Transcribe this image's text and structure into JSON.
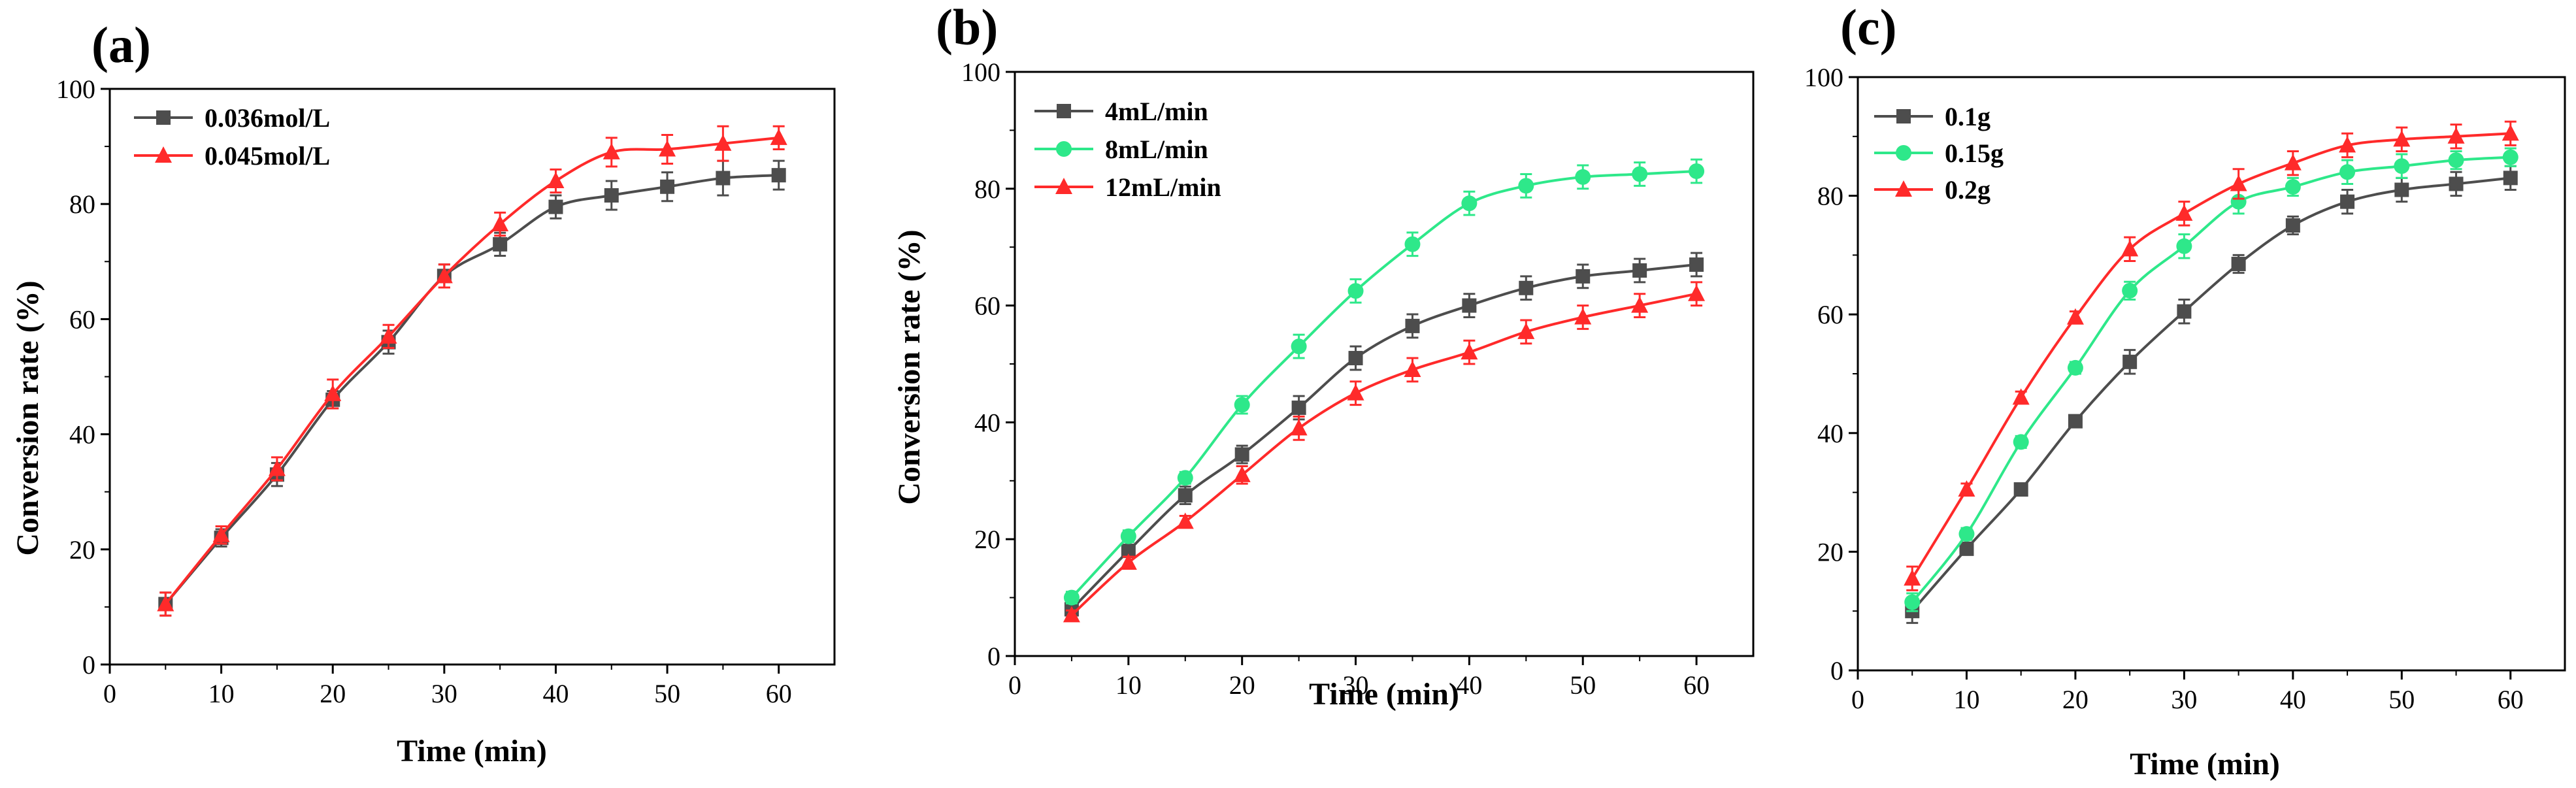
{
  "chart_data": [
    {
      "type": "line",
      "panel_label": "(a)",
      "title": "",
      "xlabel": "Time (min)",
      "ylabel": "Conversion rate (%)",
      "xlim": [
        0,
        65
      ],
      "ylim": [
        0,
        100
      ],
      "xticks": [
        0,
        10,
        20,
        30,
        40,
        50,
        60
      ],
      "yticks": [
        0,
        20,
        40,
        60,
        80,
        100
      ],
      "grid": false,
      "legend_position": "top-left",
      "x": [
        5,
        10,
        15,
        20,
        25,
        30,
        35,
        40,
        45,
        50,
        55,
        60
      ],
      "series": [
        {
          "name": "0.036mol/L",
          "color": "#4d4d4d",
          "marker": "square",
          "values": [
            10.5,
            22.0,
            33.0,
            46.0,
            56.0,
            67.5,
            73.0,
            79.5,
            81.5,
            83.0,
            84.5,
            85.0
          ],
          "errors": [
            2.0,
            1.5,
            2.0,
            1.5,
            2.0,
            2.0,
            2.0,
            2.0,
            2.5,
            2.5,
            3.0,
            2.5
          ]
        },
        {
          "name": "0.045mol/L",
          "color": "#ff2a2a",
          "marker": "triangle",
          "values": [
            10.5,
            22.5,
            34.0,
            47.0,
            57.0,
            67.5,
            76.5,
            84.0,
            89.0,
            89.5,
            90.5,
            91.5
          ],
          "errors": [
            2.0,
            1.5,
            2.0,
            2.5,
            2.0,
            2.0,
            2.0,
            2.0,
            2.5,
            2.5,
            3.0,
            2.0
          ]
        }
      ]
    },
    {
      "type": "line",
      "panel_label": "(b)",
      "title": "",
      "xlabel": "Time (min)",
      "ylabel": "Conversion rate (%)",
      "xlim": [
        0,
        65
      ],
      "ylim": [
        0,
        100
      ],
      "xticks": [
        0,
        10,
        20,
        30,
        40,
        50,
        60
      ],
      "yticks": [
        0,
        20,
        40,
        60,
        80,
        100
      ],
      "grid": false,
      "legend_position": "top-left",
      "x": [
        5,
        10,
        15,
        20,
        25,
        30,
        35,
        40,
        45,
        50,
        55,
        60
      ],
      "series": [
        {
          "name": "4mL/min",
          "color": "#4d4d4d",
          "marker": "square",
          "values": [
            8.0,
            18.0,
            27.5,
            34.5,
            42.5,
            51.0,
            56.5,
            60.0,
            63.0,
            65.0,
            66.0,
            67.0
          ],
          "errors": [
            1.0,
            1.0,
            1.5,
            1.5,
            2.0,
            2.0,
            2.0,
            2.0,
            2.0,
            2.0,
            2.0,
            2.0
          ]
        },
        {
          "name": "8mL/min",
          "color": "#2ee88a",
          "marker": "circle",
          "values": [
            10.0,
            20.5,
            30.5,
            43.0,
            53.0,
            62.5,
            70.5,
            77.5,
            80.5,
            82.0,
            82.5,
            83.0
          ],
          "errors": [
            1.0,
            1.0,
            1.0,
            1.5,
            2.0,
            2.0,
            2.0,
            2.0,
            2.0,
            2.0,
            2.0,
            2.0
          ]
        },
        {
          "name": "12mL/min",
          "color": "#ff2a2a",
          "marker": "triangle",
          "values": [
            7.0,
            16.0,
            23.0,
            31.0,
            39.0,
            45.0,
            49.0,
            52.0,
            55.5,
            58.0,
            60.0,
            62.0
          ],
          "errors": [
            0.8,
            1.0,
            1.0,
            1.5,
            2.0,
            2.0,
            2.0,
            2.0,
            2.0,
            2.0,
            2.0,
            2.0
          ]
        }
      ]
    },
    {
      "type": "line",
      "panel_label": "(c)",
      "title": "",
      "xlabel": "Time (min)",
      "ylabel": "",
      "xlim": [
        0,
        65
      ],
      "ylim": [
        0,
        100
      ],
      "xticks": [
        0,
        10,
        20,
        30,
        40,
        50,
        60
      ],
      "yticks": [
        0,
        20,
        40,
        60,
        80,
        100
      ],
      "grid": false,
      "legend_position": "top-left",
      "x": [
        5,
        10,
        15,
        20,
        25,
        30,
        35,
        40,
        45,
        50,
        55,
        60
      ],
      "series": [
        {
          "name": "0.1g",
          "color": "#4d4d4d",
          "marker": "square",
          "values": [
            10.0,
            20.5,
            30.5,
            42.0,
            52.0,
            60.5,
            68.5,
            75.0,
            79.0,
            81.0,
            82.0,
            83.0
          ],
          "errors": [
            2.0,
            1.0,
            1.0,
            1.0,
            2.0,
            2.0,
            1.5,
            1.5,
            2.0,
            2.0,
            2.0,
            2.0
          ]
        },
        {
          "name": "0.15g",
          "color": "#2ee88a",
          "marker": "circle",
          "values": [
            11.5,
            23.0,
            38.5,
            51.0,
            64.0,
            71.5,
            79.0,
            81.5,
            84.0,
            85.0,
            86.0,
            86.5
          ],
          "errors": [
            1.5,
            1.0,
            1.0,
            1.0,
            1.5,
            2.0,
            2.0,
            1.5,
            2.0,
            2.0,
            1.5,
            1.5
          ]
        },
        {
          "name": "0.2g",
          "color": "#ff2a2a",
          "marker": "triangle",
          "values": [
            15.5,
            30.5,
            46.0,
            59.5,
            71.0,
            77.0,
            82.0,
            85.5,
            88.5,
            89.5,
            90.0,
            90.5
          ],
          "errors": [
            2.0,
            1.0,
            1.0,
            1.0,
            2.0,
            2.0,
            2.5,
            2.0,
            2.0,
            2.0,
            2.0,
            2.0
          ]
        }
      ]
    }
  ]
}
